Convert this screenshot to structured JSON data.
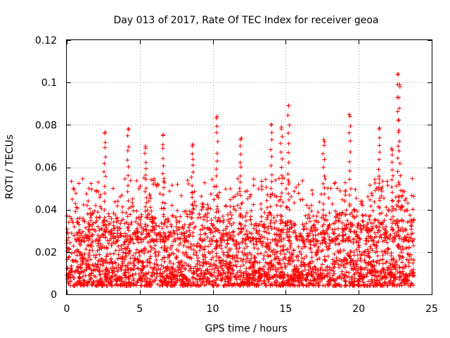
{
  "chart_data": {
    "type": "scatter",
    "title": "Day 013 of 2017, Rate Of TEC Index for receiver geoa",
    "xlabel": "GPS time / hours",
    "ylabel": "ROTI / TECUs",
    "xlim": [
      0,
      25
    ],
    "ylim": [
      0,
      0.12
    ],
    "x_ticks": [
      "0",
      "5",
      "10",
      "15",
      "20",
      "25"
    ],
    "y_ticks": [
      "0",
      "0.02",
      "0.04",
      "0.06",
      "0.08",
      "0.1",
      "0.12"
    ],
    "grid": true,
    "marker": "+",
    "series": [
      {
        "name": "ROTI",
        "color": "#ff0000",
        "x_range": [
          0,
          23.8
        ],
        "baseline_range": [
          0.004,
          0.035
        ],
        "peaks": [
          {
            "x": 2.6,
            "y": 0.076
          },
          {
            "x": 4.2,
            "y": 0.078
          },
          {
            "x": 5.4,
            "y": 0.069
          },
          {
            "x": 6.6,
            "y": 0.075
          },
          {
            "x": 8.6,
            "y": 0.07
          },
          {
            "x": 10.3,
            "y": 0.084
          },
          {
            "x": 11.9,
            "y": 0.073
          },
          {
            "x": 14.0,
            "y": 0.08
          },
          {
            "x": 14.7,
            "y": 0.079
          },
          {
            "x": 15.2,
            "y": 0.089
          },
          {
            "x": 17.6,
            "y": 0.073
          },
          {
            "x": 19.4,
            "y": 0.084
          },
          {
            "x": 21.4,
            "y": 0.078
          },
          {
            "x": 22.3,
            "y": 0.068
          },
          {
            "x": 22.7,
            "y": 0.104
          },
          {
            "x": 22.8,
            "y": 0.099
          }
        ]
      }
    ]
  }
}
